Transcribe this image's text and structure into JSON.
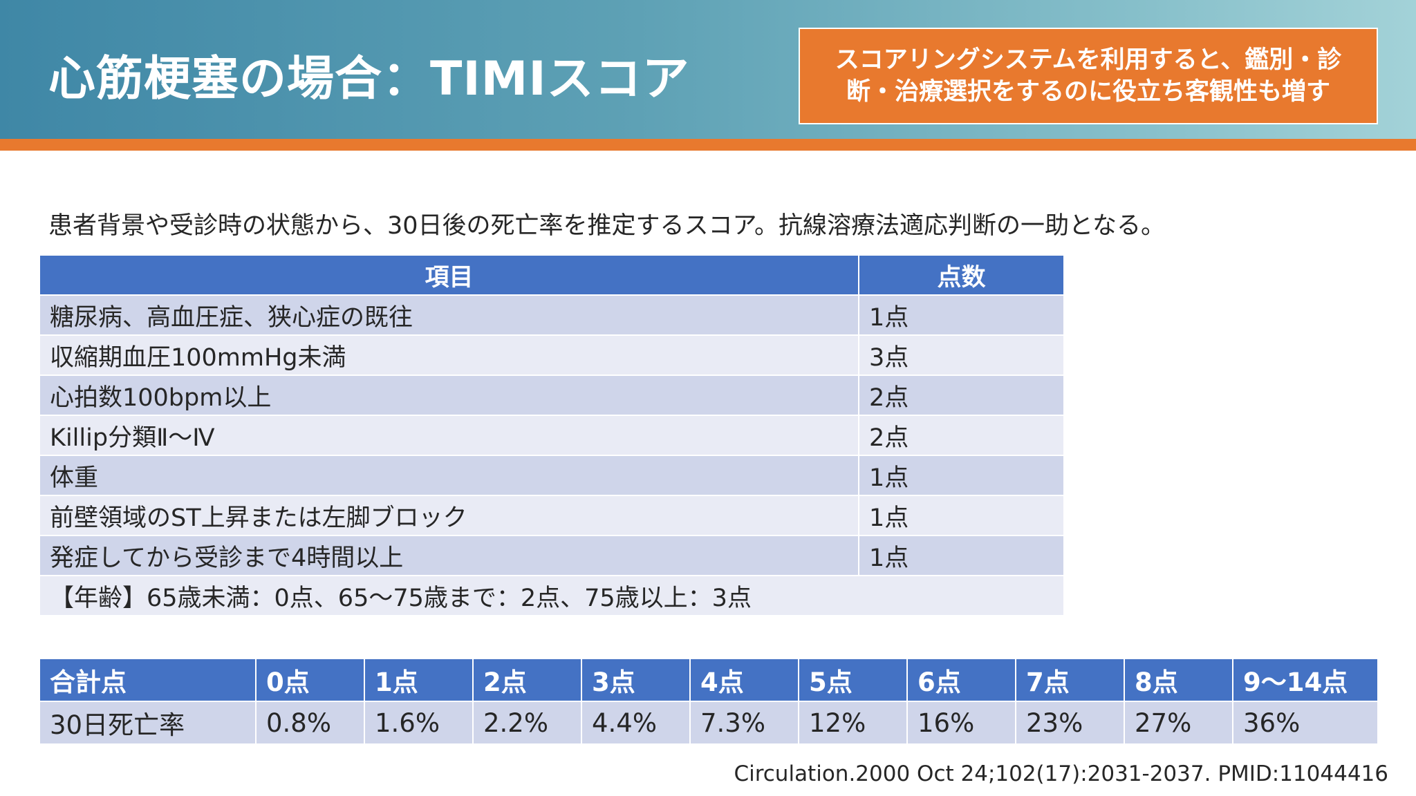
{
  "header": {
    "title": "心筋梗塞の場合：TIMIスコア",
    "callout_line1": "スコアリングシステムを利用すると、鑑別・診",
    "callout_line2": "断・治療選択をするのに役立ち客観性も増す"
  },
  "lead_text": "患者背景や受診時の状態から、30日後の死亡率を推定するスコア。抗線溶療法適応判断の一助となる。",
  "score_table": {
    "headers": [
      "項目",
      "点数"
    ],
    "rows": [
      {
        "item": "糖尿病、高血圧症、狭心症の既往",
        "points": "1点"
      },
      {
        "item": "収縮期血圧100mmHg未満",
        "points": "3点"
      },
      {
        "item": "心拍数100bpm以上",
        "points": "2点"
      },
      {
        "item": "Killip分類Ⅱ～Ⅳ",
        "points": "2点"
      },
      {
        "item": "体重",
        "points": "1点"
      },
      {
        "item": "前壁領域のST上昇または左脚ブロック",
        "points": "1点"
      },
      {
        "item": "発症してから受診まで4時間以上",
        "points": "1点"
      }
    ],
    "age_note": "【年齢】65歳未満：0点、65～75歳まで：2点、75歳以上：3点"
  },
  "mortality_table": {
    "header_label": "合計点",
    "row_label": "30日死亡率",
    "scores": [
      "0点",
      "1点",
      "2点",
      "3点",
      "4点",
      "5点",
      "6点",
      "7点",
      "8点",
      "9～14点"
    ],
    "rates": [
      "0.8%",
      "1.6%",
      "2.2%",
      "4.4%",
      "7.3%",
      "12%",
      "16%",
      "23%",
      "27%",
      "36%"
    ]
  },
  "citation": "Circulation.2000 Oct 24;102(17):2031-2037. PMID:11044416"
}
